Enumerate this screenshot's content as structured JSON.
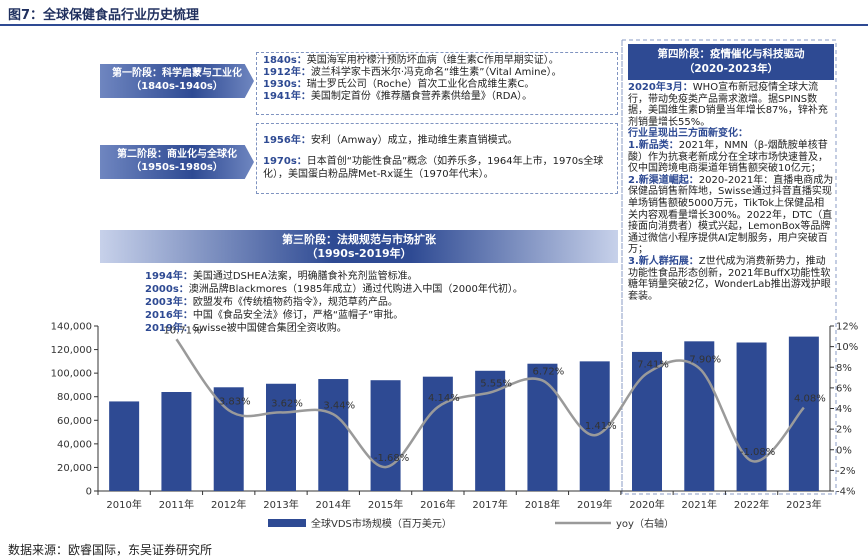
{
  "chart_data": {
    "type": "bar_line",
    "title": "图7：全球保健食品行业历史梳理",
    "source": "数据来源：欧睿国际，东吴证券研究所",
    "categories": [
      "2010年",
      "2011年",
      "2012年",
      "2013年",
      "2014年",
      "2015年",
      "2016年",
      "2017年",
      "2018年",
      "2019年",
      "2020年",
      "2021年",
      "2022年",
      "2023年"
    ],
    "series": [
      {
        "name": "全球VDS市场规模（百万美元）",
        "type": "bar",
        "color": "#2e4a93",
        "values": [
          76000,
          84000,
          88000,
          91000,
          95000,
          94000,
          97000,
          102000,
          108000,
          110000,
          118000,
          127000,
          126000,
          131000
        ]
      },
      {
        "name": "yoy（右轴）",
        "type": "line",
        "axis": "y2",
        "color": "#9a9a9a",
        "values": [
          null,
          10.71,
          3.83,
          3.62,
          3.44,
          -1.68,
          4.14,
          5.55,
          6.72,
          1.41,
          7.41,
          7.9,
          -1.08,
          4.08
        ],
        "value_labels": [
          null,
          "10.71%",
          "3.83%",
          "3.62%",
          "3.44%",
          "-1.68%",
          "4.14%",
          "5.55%",
          "6.72%",
          "1.41%",
          "7.41%",
          "7.90%",
          "-1.08%",
          "4.08%"
        ]
      }
    ],
    "ylim": [
      0,
      140000
    ],
    "yticks": [
      0,
      {
        "value": 20000,
        "label": "20,000"
      },
      {
        "value": 40000,
        "label": "40,000"
      },
      {
        "value": 60000,
        "label": "60,000"
      },
      {
        "value": 80000,
        "label": "80,000"
      },
      {
        "value": 100000,
        "label": "100,000"
      },
      {
        "value": 120000,
        "label": "120,000"
      },
      {
        "value": 140000,
        "label": "140,000"
      }
    ],
    "y2lim": [
      -4,
      12
    ],
    "y2ticks": [
      {
        "value": -4,
        "label": "-4%"
      },
      {
        "value": -2,
        "label": "-2%"
      },
      {
        "value": 0,
        "label": "0%"
      },
      {
        "value": 2,
        "label": "2%"
      },
      {
        "value": 4,
        "label": "4%"
      },
      {
        "value": 6,
        "label": "6%"
      },
      {
        "value": 8,
        "label": "8%"
      },
      {
        "value": 10,
        "label": "10%"
      },
      {
        "value": 12,
        "label": "12%"
      }
    ],
    "grid": false,
    "annotations": [
      {
        "title": "第一阶段：科学启蒙与工业化",
        "period": "（1840s-1940s）",
        "items": [
          {
            "label": "1840s：",
            "text": "英国海军用柠檬汁预防坏血病（维生素C作用早期实证）。"
          },
          {
            "label": "1912年：",
            "text": "波兰科学家卡西米尔·冯克命名“维生素”（Vital Amine）。"
          },
          {
            "label": "1930s：",
            "text": "瑞士罗氏公司（Roche）首次工业化合成维生素C。"
          },
          {
            "label": "1941年：",
            "text": "美国制定首份《推荐膳食营养素供给量》（RDA）。"
          }
        ]
      },
      {
        "title": "第二阶段：商业化与全球化",
        "period": "（1950s-1980s）",
        "items": [
          {
            "label": "1956年：",
            "text": "安利（Amway）成立，推动维生素直销模式。"
          },
          {
            "label": "1970s：",
            "text": "日本首创“功能性食品”概念（如养乐多，1964年上市，1970s全球化），美国蛋白粉品牌Met-Rx诞生（1970年代末）。"
          }
        ]
      },
      {
        "title": "第三阶段：法规规范与市场扩张",
        "period": "（1990s-2019年）",
        "items": [
          {
            "label": "1994年：",
            "text": "美国通过DSHEA法案，明确膳食补充剂监管标准。"
          },
          {
            "label": "2000s：",
            "text": "澳洲品牌Blackmores（1985年成立）通过代购进入中国（2000年代初）。"
          },
          {
            "label": "2003年：",
            "text": "欧盟发布《传统植物药指令》，规范草药产品。"
          },
          {
            "label": "2016年：",
            "text": "中国《食品安全法》修订，严格“蓝帽子”审批。"
          },
          {
            "label": "2019年：",
            "text": "Swisse被中国健合集团全资收购。"
          }
        ]
      },
      {
        "title": "第四阶段：疫情催化与科技驱动",
        "period": "（2020-2023年）",
        "items": [
          {
            "label": "2020年3月：",
            "text": "WHO宣布新冠疫情全球大流行，带动免疫类产品需求激增。据SPINS数据，美国维生素D销量当年增长87%，锌补充剂销量增长55%。"
          }
        ],
        "subheading": "行业呈现出三方面新变化：",
        "changes": [
          {
            "label": "1.新品类：",
            "text": "2021年，NMN（β-烟酰胺单核苷酸）作为抗衰老新成分在全球市场快速普及，仅中国跨境电商渠道年销售额突破10亿元；"
          },
          {
            "label": "2.新渠道崛起：",
            "text": "2020-2021年：直播电商成为保健品销售新阵地，Swisse通过抖音直播实现单场销售额破5000万元，TikTok上保健品相关内容观看量增长300%。2022年，DTC（直接面向消费者）模式兴起，LemonBox等品牌通过微信小程序提供AI定制服务，用户突破百万；"
          },
          {
            "label": "3.新人群拓展：",
            "text": "Z世代成为消费新势力，推动功能性食品形态创新，2021年BuffX功能性软糖年销量突破2亿，WonderLab推出游戏护眼套装。"
          }
        ]
      }
    ]
  }
}
